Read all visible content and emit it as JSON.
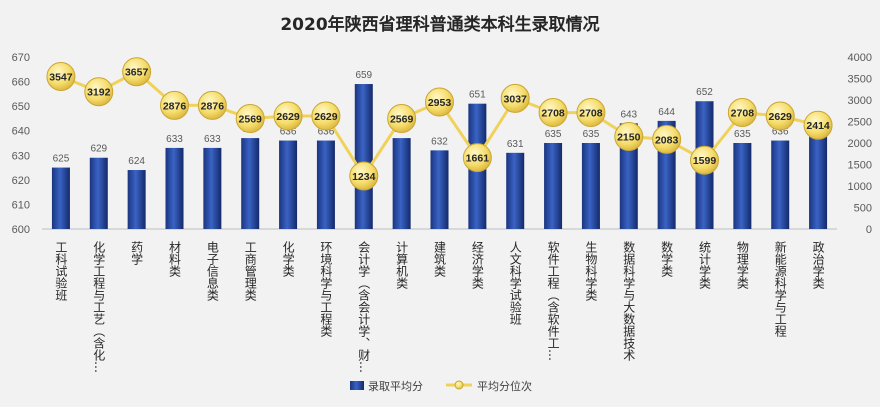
{
  "chart_data": {
    "type": "bar+line",
    "title": "2020年陕西省理科普通类本科生录取情况",
    "categories": [
      "工科试验班",
      "化学工程与工艺（含化…",
      "药学",
      "材料类",
      "电子信息类",
      "工商管理类",
      "化学类",
      "环境科学与工程类",
      "会计学（含会计学、财…",
      "计算机类",
      "建筑类",
      "经济学类",
      "人文科学试验班",
      "软件工程（含软件工…",
      "生物科学类",
      "数据科学与大数据技术",
      "数学类",
      "统计学类",
      "物理学类",
      "新能源科学与工程",
      "政治学类"
    ],
    "series": [
      {
        "name": "录取平均分",
        "type": "bar",
        "axis": "left",
        "color": "#1f3f8f",
        "values": [
          625,
          629,
          624,
          633,
          633,
          637,
          636,
          636,
          659,
          637,
          632,
          651,
          631,
          635,
          635,
          643,
          644,
          652,
          635,
          636,
          639
        ]
      },
      {
        "name": "平均分位次",
        "type": "line",
        "axis": "right",
        "color": "#f0d25a",
        "values": [
          3547,
          3192,
          3657,
          2876,
          2876,
          2569,
          2629,
          2629,
          1234,
          2569,
          2953,
          1661,
          3037,
          2708,
          2708,
          2150,
          2083,
          1599,
          2708,
          2629,
          2414
        ]
      }
    ],
    "y_left": {
      "min": 600,
      "max": 670,
      "ticks": [
        600,
        610,
        620,
        630,
        640,
        650,
        660,
        670
      ]
    },
    "y_right": {
      "min": 0,
      "max": 4000,
      "ticks": [
        0,
        500,
        1000,
        1500,
        2000,
        2500,
        3000,
        3500,
        4000
      ]
    },
    "legend_position": "bottom",
    "grid": false
  }
}
